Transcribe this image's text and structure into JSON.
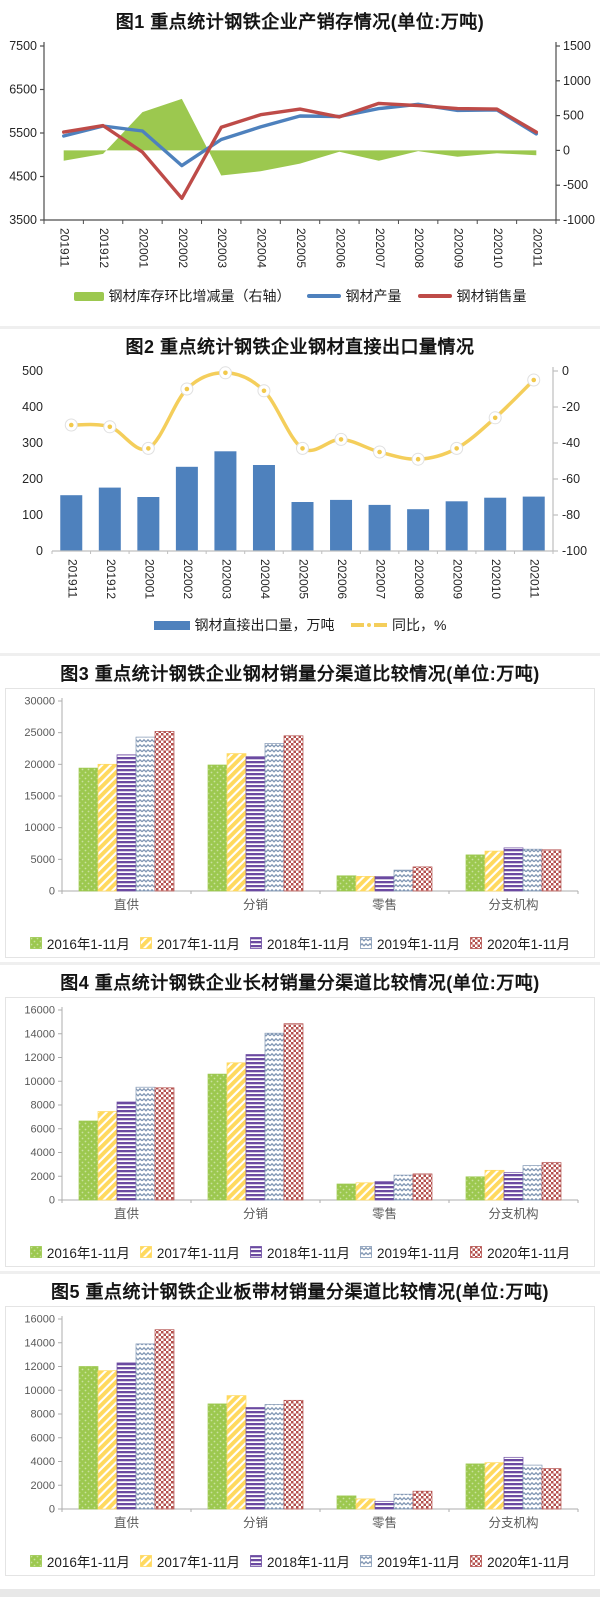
{
  "page": {
    "background": "#ffffff",
    "accent_colors": {
      "excel_blue": "#4E81BD",
      "excel_red": "#BE4B48",
      "excel_green": "#9CC84F",
      "excel_yellow": "#F4CE5B"
    }
  },
  "chart_data": [
    {
      "id": "fig1",
      "type": "combo-area-line",
      "title": "图1 重点统计钢铁企业产销存情况(单位:万吨)",
      "categories": [
        "201911",
        "201912",
        "202001",
        "202002",
        "202003",
        "202004",
        "202005",
        "202006",
        "202007",
        "202008",
        "202009",
        "202010",
        "202011"
      ],
      "left_axis": {
        "min": 3500,
        "max": 7500,
        "step": 1000
      },
      "right_axis": {
        "min": -1000,
        "max": 1500,
        "step": 500
      },
      "legend_position": "bottom",
      "series": [
        {
          "name": "钢材库存环比增减量（右轴）",
          "kind": "area",
          "axis": "right",
          "color": "#9CC84F",
          "values": [
            -150,
            -50,
            550,
            740,
            -360,
            -300,
            -190,
            -20,
            -150,
            -10,
            -90,
            -40,
            -70
          ]
        },
        {
          "name": "钢材产量",
          "kind": "line",
          "axis": "left",
          "color": "#4E81BD",
          "values": [
            5430,
            5660,
            5545,
            4750,
            5350,
            5640,
            5890,
            5880,
            6060,
            6160,
            6020,
            6030,
            5480
          ]
        },
        {
          "name": "钢材销售量",
          "kind": "line",
          "axis": "left",
          "color": "#BE4B48",
          "values": [
            5520,
            5670,
            5060,
            4000,
            5630,
            5920,
            6050,
            5870,
            6180,
            6130,
            6060,
            6050,
            5520
          ]
        }
      ]
    },
    {
      "id": "fig2",
      "type": "combo-bar-line",
      "title": "图2 重点统计钢铁企业钢材直接出口量情况",
      "categories": [
        "201911",
        "201912",
        "202001",
        "202002",
        "202003",
        "202004",
        "202005",
        "202006",
        "202007",
        "202008",
        "202009",
        "202010",
        "202011"
      ],
      "left_axis": {
        "min": 0,
        "max": 500,
        "step": 100
      },
      "right_axis": {
        "min": -100,
        "max": 0,
        "step": 20
      },
      "legend_position": "bottom",
      "series": [
        {
          "name": "钢材直接出口量，万吨",
          "kind": "bar",
          "axis": "left",
          "color": "#4E81BD",
          "values": [
            155,
            176,
            150,
            234,
            277,
            239,
            136,
            142,
            128,
            116,
            138,
            148,
            151
          ]
        },
        {
          "name": "同比，%",
          "kind": "line",
          "axis": "right",
          "color": "#F4CE5B",
          "marker_fill": "#ffffff",
          "marker_dot": "#F2C94C",
          "values": [
            -30,
            -31,
            -43,
            -10,
            -1,
            -11,
            -43,
            -38,
            -45,
            -49,
            -43,
            -26,
            -5
          ]
        }
      ]
    },
    {
      "id": "fig3",
      "type": "grouped-bar",
      "title": "图3 重点统计钢铁企业钢材销量分渠道比较情况(单位:万吨)",
      "categories": [
        "直供",
        "分销",
        "零售",
        "分支机构"
      ],
      "left_axis": {
        "min": 0,
        "max": 30000,
        "step": 5000
      },
      "legend_position": "bottom",
      "series": [
        {
          "name": "2016年1-11月",
          "pattern": "dots",
          "color": "#9CC84F",
          "values": [
            19400,
            19900,
            2400,
            5700
          ]
        },
        {
          "name": "2017年1-11月",
          "pattern": "diag",
          "color": "#FFD95E",
          "values": [
            20000,
            21700,
            2300,
            6300
          ]
        },
        {
          "name": "2018年1-11月",
          "pattern": "hstripe",
          "color": "#6B4AA1",
          "values": [
            21500,
            21200,
            2300,
            6800
          ]
        },
        {
          "name": "2019年1-11月",
          "pattern": "wave",
          "color": "#8096B3",
          "values": [
            24300,
            23300,
            3300,
            6600
          ]
        },
        {
          "name": "2020年1-11月",
          "pattern": "checker",
          "color": "#B4514E",
          "values": [
            25200,
            24500,
            3800,
            6500
          ]
        }
      ]
    },
    {
      "id": "fig4",
      "type": "grouped-bar",
      "title": "图4 重点统计钢铁企业长材销量分渠道比较情况(单位:万吨)",
      "categories": [
        "直供",
        "分销",
        "零售",
        "分支机构"
      ],
      "left_axis": {
        "min": 0,
        "max": 16000,
        "step": 2000
      },
      "legend_position": "bottom",
      "series": [
        {
          "name": "2016年1-11月",
          "pattern": "dots",
          "color": "#9CC84F",
          "values": [
            6650,
            10600,
            1350,
            1950
          ]
        },
        {
          "name": "2017年1-11月",
          "pattern": "diag",
          "color": "#FFD95E",
          "values": [
            7450,
            11550,
            1450,
            2500
          ]
        },
        {
          "name": "2018年1-11月",
          "pattern": "hstripe",
          "color": "#6B4AA1",
          "values": [
            8250,
            12250,
            1550,
            2300
          ]
        },
        {
          "name": "2019年1-11月",
          "pattern": "wave",
          "color": "#8096B3",
          "values": [
            9500,
            14050,
            2100,
            2900
          ]
        },
        {
          "name": "2020年1-11月",
          "pattern": "checker",
          "color": "#B4514E",
          "values": [
            9450,
            14850,
            2200,
            3150
          ]
        }
      ]
    },
    {
      "id": "fig5",
      "type": "grouped-bar",
      "title": "图5 重点统计钢铁企业板带材销量分渠道比较情况(单位:万吨)",
      "categories": [
        "直供",
        "分销",
        "零售",
        "分支机构"
      ],
      "left_axis": {
        "min": 0,
        "max": 16000,
        "step": 2000
      },
      "legend_position": "bottom",
      "series": [
        {
          "name": "2016年1-11月",
          "pattern": "dots",
          "color": "#9CC84F",
          "values": [
            12000,
            8850,
            1100,
            3800
          ]
        },
        {
          "name": "2017年1-11月",
          "pattern": "diag",
          "color": "#FFD95E",
          "values": [
            11650,
            9550,
            850,
            3900
          ]
        },
        {
          "name": "2018年1-11月",
          "pattern": "hstripe",
          "color": "#6B4AA1",
          "values": [
            12300,
            8550,
            650,
            4350
          ]
        },
        {
          "name": "2019年1-11月",
          "pattern": "wave",
          "color": "#8096B3",
          "values": [
            13900,
            8800,
            1250,
            3700
          ]
        },
        {
          "name": "2020年1-11月",
          "pattern": "checker",
          "color": "#B4514E",
          "values": [
            15100,
            9150,
            1500,
            3400
          ]
        }
      ]
    }
  ]
}
